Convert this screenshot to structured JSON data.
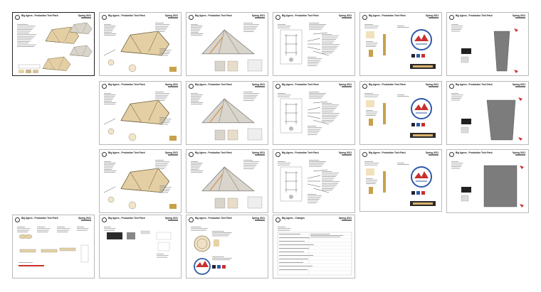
{
  "brand_color": "#e8d3a2",
  "tent_fill": "#e3cfa3",
  "tent_grey": "#d9d4cc",
  "accent_blue": "#2d5aa8",
  "accent_red": "#c8302e",
  "pages": [
    {
      "title": "Big Agnes - Production Tech Pack",
      "season": "Spring 2021",
      "art": "overview",
      "selected": true
    },
    {
      "title": "Big Agnes - Production Tech Pack",
      "season": "Spring 2021",
      "art": "tent-yellow"
    },
    {
      "title": "Big Agnes - Production Tech Pack",
      "season": "Spring 2021",
      "art": "tent-grey"
    },
    {
      "title": "Big Agnes - Production Tech Pack",
      "season": "Spring 2021",
      "art": "stakes"
    },
    {
      "title": "Big Agnes - Production Tech Pack",
      "season": "Spring 2021",
      "art": "labels"
    },
    {
      "title": "Big Agnes - Production Tech Pack",
      "season": "Spring 2021",
      "art": "bag-narrow"
    },
    {
      "title": "Big Agnes - Production Tech Pack",
      "season": "Spring 2021",
      "art": "tent-yellow"
    },
    {
      "title": "Big Agnes - Production Tech Pack",
      "season": "Spring 2021",
      "art": "tent-grey"
    },
    {
      "title": "Big Agnes - Production Tech Pack",
      "season": "Spring 2021",
      "art": "stakes"
    },
    {
      "title": "Big Agnes - Production Tech Pack",
      "season": "Spring 2021",
      "art": "labels"
    },
    {
      "title": "Big Agnes - Production Tech Pack",
      "season": "Spring 2021",
      "art": "bag-wide"
    },
    {
      "title": "Big Agnes - Production Tech Pack",
      "season": "Spring 2021",
      "art": "tent-yellow"
    },
    {
      "title": "Big Agnes - Production Tech Pack",
      "season": "Spring 2021",
      "art": "tent-grey"
    },
    {
      "title": "Big Agnes - Production Tech Pack",
      "season": "Spring 2021",
      "art": "stakes"
    },
    {
      "title": "Big Agnes - Production Tech Pack",
      "season": "Spring 2021",
      "art": "labels"
    },
    {
      "title": "Big Agnes - Production Tech Pack",
      "season": "Spring 2021",
      "art": "bag-full"
    },
    {
      "title": "Big Agnes - Production Tech Pack",
      "season": "Spring 2021",
      "art": "parts"
    },
    {
      "title": "Big Agnes - Production Tech Pack",
      "season": "Spring 2021",
      "art": "packaging"
    },
    {
      "title": "Big Agnes - Production Tech Pack",
      "season": "Spring 2021",
      "art": "patches"
    },
    {
      "title": "Big Agnes - Changes",
      "season": "Spring 2021",
      "art": "changes"
    }
  ]
}
